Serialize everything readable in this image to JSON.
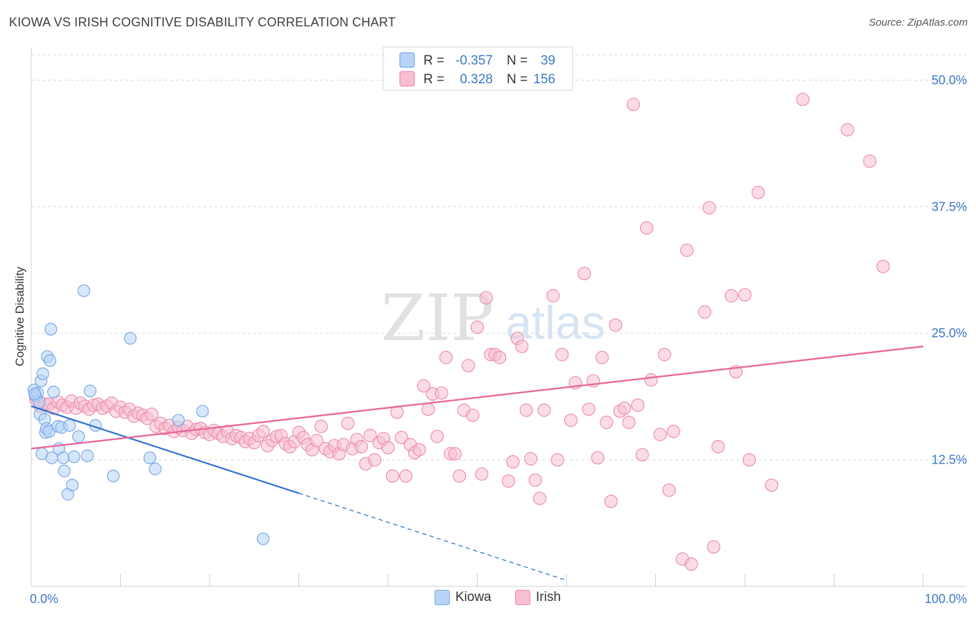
{
  "header": {
    "title": "KIOWA VS IRISH COGNITIVE DISABILITY CORRELATION CHART",
    "source": "Source: ZipAtlas.com"
  },
  "watermark": {
    "zip": "ZIP",
    "atlas": "atlas"
  },
  "colors": {
    "kiowa_fill": "#b7d3f5",
    "kiowa_stroke": "#7aa9e8",
    "kiowa_line": "#2f6fd1",
    "irish_fill": "#f7bfd1",
    "irish_stroke": "#ec8fae",
    "irish_line": "#e8699a",
    "axis_label": "#3b78c7",
    "grid": "#d8d8d8"
  },
  "legend": {
    "rows": [
      {
        "r_label": "R =",
        "r_value": "-0.357",
        "n_label": "N =",
        "n_value": "39"
      },
      {
        "r_label": "R =",
        "r_value": "0.328",
        "n_label": "N =",
        "n_value": "156"
      }
    ]
  },
  "chart_data": {
    "type": "scatter",
    "title": "KIOWA VS IRISH COGNITIVE DISABILITY CORRELATION CHART",
    "xlabel": "",
    "ylabel": "Cognitive Disability",
    "xlim": [
      0,
      100
    ],
    "ylim": [
      0,
      52.5
    ],
    "x_tick_labels": [
      "0.0%",
      "100.0%"
    ],
    "y_ticks": [
      12.5,
      25.0,
      37.5,
      50.0
    ],
    "y_tick_labels": [
      "12.5%",
      "25.0%",
      "37.5%",
      "50.0%"
    ],
    "grid": true,
    "legend_position": "top-center",
    "series": [
      {
        "name": "Kiowa",
        "R": -0.357,
        "N": 39,
        "trend": {
          "x0": 0,
          "y0": 17.8,
          "x1": 30,
          "y1": 9.2,
          "dashed_to_x": 60
        },
        "points": [
          [
            0.3,
            19.4
          ],
          [
            0.5,
            18.8
          ],
          [
            0.7,
            19.1
          ],
          [
            0.9,
            18.2
          ],
          [
            1.0,
            17.0
          ],
          [
            1.1,
            20.3
          ],
          [
            1.2,
            13.1
          ],
          [
            1.3,
            21.0
          ],
          [
            1.5,
            16.5
          ],
          [
            1.6,
            15.2
          ],
          [
            1.7,
            15.6
          ],
          [
            1.8,
            22.7
          ],
          [
            2.0,
            15.3
          ],
          [
            2.1,
            22.3
          ],
          [
            2.2,
            25.4
          ],
          [
            2.3,
            12.7
          ],
          [
            2.5,
            19.2
          ],
          [
            3.0,
            15.8
          ],
          [
            3.1,
            13.6
          ],
          [
            3.4,
            15.7
          ],
          [
            3.6,
            12.7
          ],
          [
            3.7,
            11.4
          ],
          [
            4.1,
            9.1
          ],
          [
            4.3,
            15.9
          ],
          [
            4.6,
            10.0
          ],
          [
            4.8,
            12.8
          ],
          [
            5.3,
            14.8
          ],
          [
            5.9,
            29.2
          ],
          [
            6.3,
            12.9
          ],
          [
            6.6,
            19.3
          ],
          [
            7.2,
            15.9
          ],
          [
            9.2,
            10.9
          ],
          [
            11.1,
            24.5
          ],
          [
            13.3,
            12.7
          ],
          [
            13.9,
            11.6
          ],
          [
            16.5,
            16.4
          ],
          [
            19.2,
            17.3
          ],
          [
            26.0,
            4.7
          ],
          [
            0.4,
            19.0
          ]
        ]
      },
      {
        "name": "Irish",
        "R": 0.328,
        "N": 156,
        "trend": {
          "x0": 0,
          "y0": 13.6,
          "x1": 100,
          "y1": 23.7
        },
        "points": [
          [
            0.5,
            18.5
          ],
          [
            1.0,
            17.8
          ],
          [
            1.5,
            18.0
          ],
          [
            2.0,
            18.0
          ],
          [
            2.5,
            17.6
          ],
          [
            3.0,
            18.2
          ],
          [
            3.5,
            17.9
          ],
          [
            4.0,
            17.7
          ],
          [
            4.5,
            18.3
          ],
          [
            5.0,
            17.6
          ],
          [
            5.5,
            18.1
          ],
          [
            6.0,
            17.8
          ],
          [
            6.5,
            17.5
          ],
          [
            7.0,
            17.9
          ],
          [
            7.5,
            18.0
          ],
          [
            8.0,
            17.6
          ],
          [
            8.5,
            17.8
          ],
          [
            9.0,
            18.1
          ],
          [
            9.5,
            17.3
          ],
          [
            10.0,
            17.7
          ],
          [
            10.5,
            17.2
          ],
          [
            11.0,
            17.5
          ],
          [
            11.5,
            16.8
          ],
          [
            12.0,
            17.1
          ],
          [
            12.5,
            16.9
          ],
          [
            13.0,
            16.6
          ],
          [
            13.5,
            17.0
          ],
          [
            14.0,
            15.8
          ],
          [
            14.5,
            16.1
          ],
          [
            15.0,
            15.6
          ],
          [
            15.5,
            15.9
          ],
          [
            16.0,
            15.3
          ],
          [
            16.5,
            15.7
          ],
          [
            17.0,
            15.4
          ],
          [
            17.5,
            15.8
          ],
          [
            18.0,
            15.1
          ],
          [
            18.5,
            15.5
          ],
          [
            19.0,
            15.6
          ],
          [
            19.5,
            15.2
          ],
          [
            20.0,
            15.0
          ],
          [
            20.5,
            15.4
          ],
          [
            21.0,
            15.1
          ],
          [
            21.5,
            14.8
          ],
          [
            22.0,
            15.3
          ],
          [
            22.5,
            14.6
          ],
          [
            23.0,
            14.9
          ],
          [
            23.5,
            14.7
          ],
          [
            24.0,
            14.3
          ],
          [
            24.5,
            14.6
          ],
          [
            25.0,
            14.2
          ],
          [
            25.5,
            14.9
          ],
          [
            26.0,
            15.3
          ],
          [
            26.5,
            13.9
          ],
          [
            27.0,
            14.4
          ],
          [
            27.5,
            14.8
          ],
          [
            28.0,
            14.9
          ],
          [
            28.5,
            14.1
          ],
          [
            29.0,
            13.8
          ],
          [
            29.5,
            14.3
          ],
          [
            30.0,
            15.2
          ],
          [
            30.5,
            14.7
          ],
          [
            31.0,
            14.0
          ],
          [
            31.5,
            13.5
          ],
          [
            32.0,
            14.4
          ],
          [
            32.5,
            15.8
          ],
          [
            33.0,
            13.6
          ],
          [
            33.5,
            13.3
          ],
          [
            34.0,
            13.9
          ],
          [
            34.5,
            13.1
          ],
          [
            35.0,
            14.0
          ],
          [
            35.5,
            16.1
          ],
          [
            36.0,
            13.6
          ],
          [
            36.5,
            14.5
          ],
          [
            37.0,
            13.8
          ],
          [
            37.5,
            12.1
          ],
          [
            38.0,
            14.9
          ],
          [
            38.5,
            12.5
          ],
          [
            39.0,
            14.2
          ],
          [
            39.5,
            14.6
          ],
          [
            40.0,
            13.7
          ],
          [
            40.5,
            10.9
          ],
          [
            41.0,
            17.2
          ],
          [
            41.5,
            14.7
          ],
          [
            42.0,
            10.9
          ],
          [
            42.5,
            14.0
          ],
          [
            43.0,
            13.2
          ],
          [
            43.5,
            13.5
          ],
          [
            44.0,
            19.8
          ],
          [
            44.5,
            17.5
          ],
          [
            45.0,
            19.0
          ],
          [
            45.5,
            14.8
          ],
          [
            46.0,
            19.1
          ],
          [
            46.5,
            22.6
          ],
          [
            47.0,
            13.1
          ],
          [
            47.5,
            13.1
          ],
          [
            48.0,
            10.9
          ],
          [
            48.5,
            17.4
          ],
          [
            49.0,
            21.8
          ],
          [
            49.5,
            16.9
          ],
          [
            50.0,
            25.6
          ],
          [
            50.5,
            11.1
          ],
          [
            51.0,
            28.5
          ],
          [
            51.5,
            22.9
          ],
          [
            52.0,
            22.9
          ],
          [
            52.5,
            22.6
          ],
          [
            53.5,
            10.4
          ],
          [
            54.0,
            12.3
          ],
          [
            54.5,
            24.5
          ],
          [
            55.0,
            23.7
          ],
          [
            55.5,
            17.4
          ],
          [
            56.0,
            12.6
          ],
          [
            56.5,
            10.5
          ],
          [
            57.0,
            8.7
          ],
          [
            57.5,
            17.4
          ],
          [
            58.5,
            28.7
          ],
          [
            59.0,
            12.5
          ],
          [
            59.5,
            22.9
          ],
          [
            60.5,
            16.4
          ],
          [
            61.0,
            20.1
          ],
          [
            62.0,
            30.9
          ],
          [
            62.5,
            17.5
          ],
          [
            63.0,
            20.3
          ],
          [
            63.5,
            12.7
          ],
          [
            64.0,
            22.6
          ],
          [
            64.5,
            16.2
          ],
          [
            65.0,
            8.4
          ],
          [
            65.5,
            25.8
          ],
          [
            66.0,
            17.3
          ],
          [
            66.5,
            17.6
          ],
          [
            67.0,
            16.2
          ],
          [
            67.5,
            47.6
          ],
          [
            68.0,
            17.9
          ],
          [
            68.5,
            13.0
          ],
          [
            69.0,
            35.4
          ],
          [
            69.5,
            20.4
          ],
          [
            70.5,
            15.0
          ],
          [
            71.0,
            22.9
          ],
          [
            71.5,
            9.5
          ],
          [
            72.0,
            15.3
          ],
          [
            73.0,
            2.7
          ],
          [
            73.5,
            33.2
          ],
          [
            74.0,
            2.2
          ],
          [
            75.5,
            27.1
          ],
          [
            76.0,
            37.4
          ],
          [
            76.5,
            3.9
          ],
          [
            77.0,
            13.8
          ],
          [
            78.5,
            28.7
          ],
          [
            79.0,
            21.2
          ],
          [
            80.0,
            28.8
          ],
          [
            80.5,
            12.5
          ],
          [
            81.5,
            38.9
          ],
          [
            83.0,
            10.0
          ],
          [
            86.5,
            48.1
          ],
          [
            91.5,
            45.1
          ],
          [
            94.0,
            42.0
          ],
          [
            95.5,
            31.6
          ]
        ]
      }
    ]
  }
}
